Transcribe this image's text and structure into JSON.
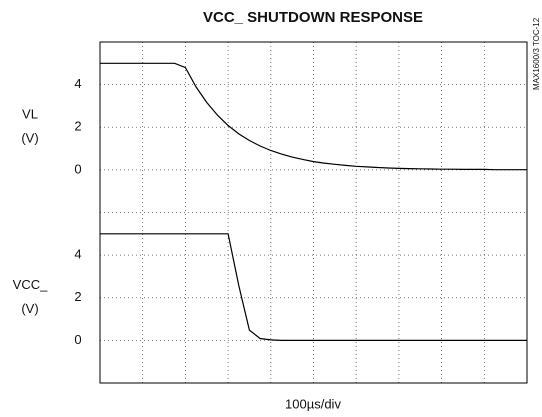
{
  "title": "VCC_ SHUTDOWN RESPONSE",
  "xlabel": "100µs/div",
  "side_note": "MAX1600/3 TOC-12",
  "chart_data": [
    {
      "type": "line",
      "ylabel": [
        "VL",
        "(V)"
      ],
      "xlim": [
        0,
        1000
      ],
      "ylim": [
        -2,
        6
      ],
      "yticks": [
        0,
        2,
        4
      ],
      "grid": true,
      "x": [
        0,
        25,
        50,
        75,
        100,
        125,
        150,
        175,
        200,
        225,
        250,
        275,
        300,
        325,
        350,
        375,
        400,
        425,
        450,
        475,
        500,
        525,
        550,
        575,
        600,
        625,
        650,
        675,
        700,
        725,
        750,
        775,
        800,
        825,
        850,
        875,
        900,
        925,
        950,
        975,
        1000
      ],
      "series": [
        {
          "name": "VL",
          "color": "#000000",
          "values": [
            5,
            5,
            5,
            5,
            5,
            5,
            5,
            5,
            4.8,
            3.89,
            3.16,
            2.57,
            2.08,
            1.69,
            1.38,
            1.12,
            0.91,
            0.74,
            0.6,
            0.49,
            0.39,
            0.32,
            0.26,
            0.21,
            0.17,
            0.14,
            0.11,
            0.09,
            0.07,
            0.06,
            0.05,
            0.04,
            0.03,
            0.03,
            0.02,
            0.02,
            0.02,
            0.01,
            0.01,
            0.01,
            0.01
          ]
        }
      ]
    },
    {
      "type": "line",
      "ylabel": [
        "VCC_",
        "(V)"
      ],
      "xlim": [
        0,
        1000
      ],
      "ylim": [
        -2,
        6
      ],
      "yticks": [
        0,
        2,
        4
      ],
      "grid": true,
      "x": [
        0,
        25,
        50,
        75,
        100,
        125,
        150,
        175,
        200,
        225,
        250,
        275,
        300,
        325,
        350,
        375,
        400,
        425,
        450,
        475,
        500,
        525,
        550,
        575,
        600,
        625,
        650,
        675,
        700,
        725,
        750,
        775,
        800,
        825,
        850,
        875,
        900,
        925,
        950,
        975,
        1000
      ],
      "series": [
        {
          "name": "VCC_",
          "color": "#000000",
          "values": [
            5,
            5,
            5,
            5,
            5,
            5,
            5,
            5,
            5,
            5,
            5,
            5,
            5,
            2.57,
            0.48,
            0.09,
            0.02,
            0,
            0,
            0,
            0,
            0,
            0,
            0,
            0,
            0,
            0,
            0,
            0,
            0,
            0,
            0,
            0,
            0,
            0,
            0,
            0,
            0,
            0,
            0,
            0
          ]
        }
      ]
    }
  ]
}
